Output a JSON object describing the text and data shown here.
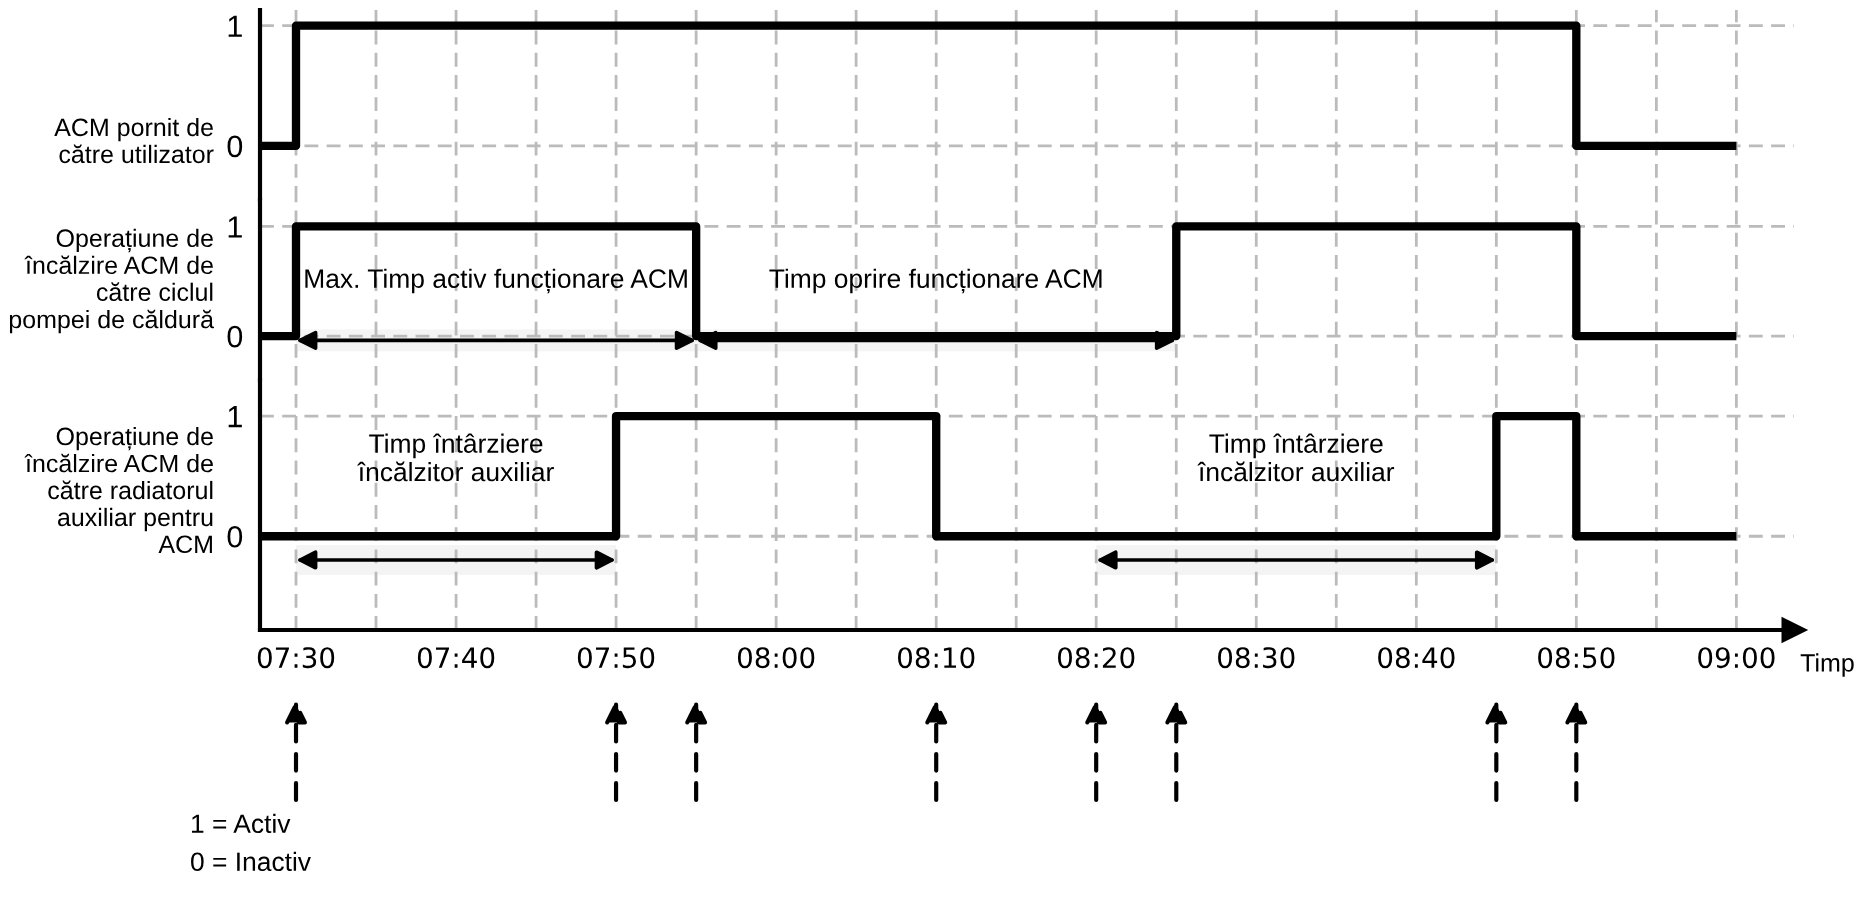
{
  "chart_data": [
    {
      "type": "step",
      "ylabel": "ACM pornit de\ncătre utilizator",
      "series": [
        {
          "color": "#000000",
          "x": [
            7.4625,
            7.5,
            8.8333,
            9.0
          ],
          "values": [
            0,
            1,
            0,
            0
          ]
        }
      ],
      "xlim": [
        7.4625,
        9.06
      ],
      "xticks": [
        {
          "value": 7.5,
          "label": null
        },
        {
          "value": 7.5833,
          "label": null
        },
        {
          "value": 7.6667,
          "label": null
        },
        {
          "value": 7.75,
          "label": null
        },
        {
          "value": 7.8333,
          "label": null
        },
        {
          "value": 7.9167,
          "label": null
        },
        {
          "value": 8.0,
          "label": null
        },
        {
          "value": 8.0833,
          "label": null
        },
        {
          "value": 8.1667,
          "label": null
        },
        {
          "value": 8.25,
          "label": null
        },
        {
          "value": 8.3333,
          "label": null
        },
        {
          "value": 8.4167,
          "label": null
        },
        {
          "value": 8.5,
          "label": null
        },
        {
          "value": 8.5833,
          "label": null
        },
        {
          "value": 8.6667,
          "label": null
        },
        {
          "value": 8.75,
          "label": null
        },
        {
          "value": 8.8333,
          "label": null
        },
        {
          "value": 8.9167,
          "label": null
        },
        {
          "value": 9.0,
          "label": null
        }
      ],
      "ylim": [
        -0.45,
        1.13
      ],
      "yticks": [
        0,
        1
      ],
      "grid": true,
      "tick_labels": "y"
    },
    {
      "type": "step",
      "ylabel": "Operațiune de\nîncălzire ACM de\ncătre ciclul\npompei de căldură",
      "series": [
        {
          "color": "#000000",
          "x": [
            7.4625,
            7.5,
            7.9167,
            8.4167,
            8.8333,
            9.0
          ],
          "values": [
            0,
            1,
            0,
            1,
            0,
            0
          ]
        }
      ],
      "xlim": [
        7.4625,
        9.06
      ],
      "xticks": [
        {
          "value": 7.5,
          "label": null
        },
        {
          "value": 7.5833,
          "label": null
        },
        {
          "value": 7.6667,
          "label": null
        },
        {
          "value": 7.75,
          "label": null
        },
        {
          "value": 7.8333,
          "label": null
        },
        {
          "value": 7.9167,
          "label": null
        },
        {
          "value": 8.0,
          "label": null
        },
        {
          "value": 8.0833,
          "label": null
        },
        {
          "value": 8.1667,
          "label": null
        },
        {
          "value": 8.25,
          "label": null
        },
        {
          "value": 8.3333,
          "label": null
        },
        {
          "value": 8.4167,
          "label": null
        },
        {
          "value": 8.5,
          "label": null
        },
        {
          "value": 8.5833,
          "label": null
        },
        {
          "value": 8.6667,
          "label": null
        },
        {
          "value": 8.75,
          "label": null
        },
        {
          "value": 8.8333,
          "label": null
        },
        {
          "value": 8.9167,
          "label": null
        },
        {
          "value": 9.0,
          "label": null
        }
      ],
      "ylim": [
        -0.4,
        1.24
      ],
      "yticks": [
        0,
        1
      ],
      "grid": true,
      "tick_labels": "y",
      "bands": [
        {
          "axis": "x",
          "from": 7.5,
          "to": 7.9167,
          "label": "Max. Timp activ funcționare ACM"
        },
        {
          "axis": "x",
          "from": 7.9167,
          "to": 8.4167,
          "label": "Timp oprire funcționare ACM"
        }
      ]
    },
    {
      "type": "step",
      "ylabel": "Operațiune de\nîncălzire ACM de\ncătre radiatorul\nauxiliar pentru\nACM",
      "xlabel": "Timp",
      "series": [
        {
          "color": "#000000",
          "x": [
            7.4625,
            7.8333,
            8.1667,
            8.75,
            8.8333,
            9.0
          ],
          "values": [
            0,
            1,
            0,
            1,
            0,
            0
          ]
        }
      ],
      "xlim": [
        7.4625,
        9.06
      ],
      "xticks": [
        {
          "value": 7.5,
          "label": "07:30"
        },
        {
          "value": 7.5833,
          "label": null
        },
        {
          "value": 7.6667,
          "label": "07:40"
        },
        {
          "value": 7.75,
          "label": null
        },
        {
          "value": 7.8333,
          "label": "07:50"
        },
        {
          "value": 7.9167,
          "label": null
        },
        {
          "value": 8.0,
          "label": "08:00"
        },
        {
          "value": 8.0833,
          "label": null
        },
        {
          "value": 8.1667,
          "label": "08:10"
        },
        {
          "value": 8.25,
          "label": null
        },
        {
          "value": 8.3333,
          "label": "08:20"
        },
        {
          "value": 8.4167,
          "label": null
        },
        {
          "value": 8.5,
          "label": "08:30"
        },
        {
          "value": 8.5833,
          "label": null
        },
        {
          "value": 8.6667,
          "label": "08:40"
        },
        {
          "value": 8.75,
          "label": null
        },
        {
          "value": 8.8333,
          "label": "08:50"
        },
        {
          "value": 8.9167,
          "label": null
        },
        {
          "value": 9.0,
          "label": "09:00"
        }
      ],
      "ylim": [
        -0.78,
        1.3
      ],
      "yticks": [
        0,
        1
      ],
      "grid": true,
      "bands": [
        {
          "axis": "x",
          "from": 7.5,
          "to": 7.8333,
          "label": "Timp întârziere\nîncălzitor auxiliar"
        },
        {
          "axis": "x",
          "from": 8.3333,
          "to": 8.75,
          "label": "Timp întârziere\nîncălzitor auxiliar"
        }
      ],
      "annotations": [
        "1 = Activ",
        "0 = Inactiv"
      ]
    }
  ]
}
